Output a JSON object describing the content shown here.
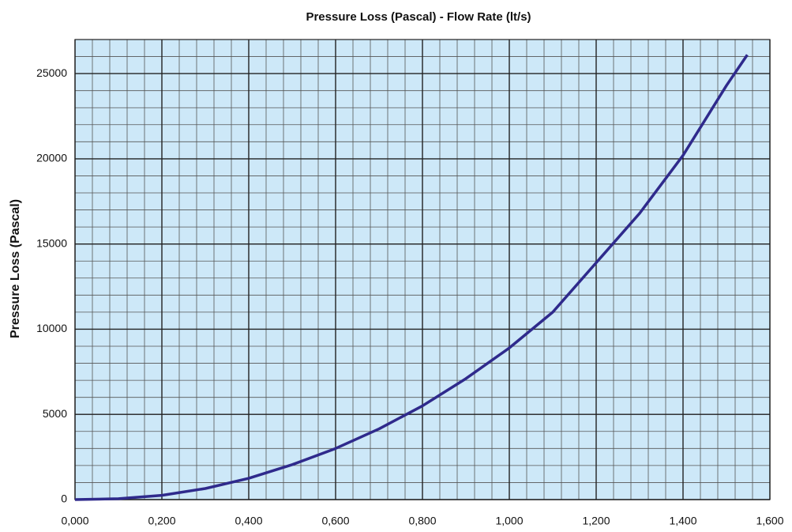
{
  "chart_data": {
    "type": "line",
    "title": "Pressure Loss (Pascal) - Flow Rate (lt/s)",
    "y_label": "Pressure Loss (Pascal)",
    "x": [
      0,
      0.1,
      0.2,
      0.3,
      0.4,
      0.5,
      0.6,
      0.7,
      0.8,
      0.9,
      1.0,
      1.1,
      1.2,
      1.3,
      1.4,
      1.5,
      1.548
    ],
    "series": [
      {
        "name": "Pressure Loss",
        "color": "#2f2a8c",
        "values": [
          0,
          50,
          250,
          650,
          1250,
          2050,
          3000,
          4150,
          5500,
          7100,
          8900,
          11000,
          13900,
          16800,
          20200,
          24300,
          26100
        ]
      }
    ],
    "xlim": [
      0,
      1.6
    ],
    "ylim": [
      0,
      27000
    ],
    "xticks": [
      {
        "value": 0,
        "label": "0,000"
      },
      {
        "value": 0.2,
        "label": "0,200"
      },
      {
        "value": 0.4,
        "label": "0,400"
      },
      {
        "value": 0.6,
        "label": "0,600"
      },
      {
        "value": 0.8,
        "label": "0,800"
      },
      {
        "value": 1.0,
        "label": "1,000"
      },
      {
        "value": 1.2,
        "label": "1,200"
      },
      {
        "value": 1.4,
        "label": "1,400"
      },
      {
        "value": 1.6,
        "label": "1,600"
      }
    ],
    "yticks": [
      0,
      5000,
      10000,
      15000,
      20000,
      25000
    ],
    "grid": true,
    "minor_grid": {
      "x": 0.04,
      "y": 1000
    },
    "plot_background": "#cde8f8"
  }
}
